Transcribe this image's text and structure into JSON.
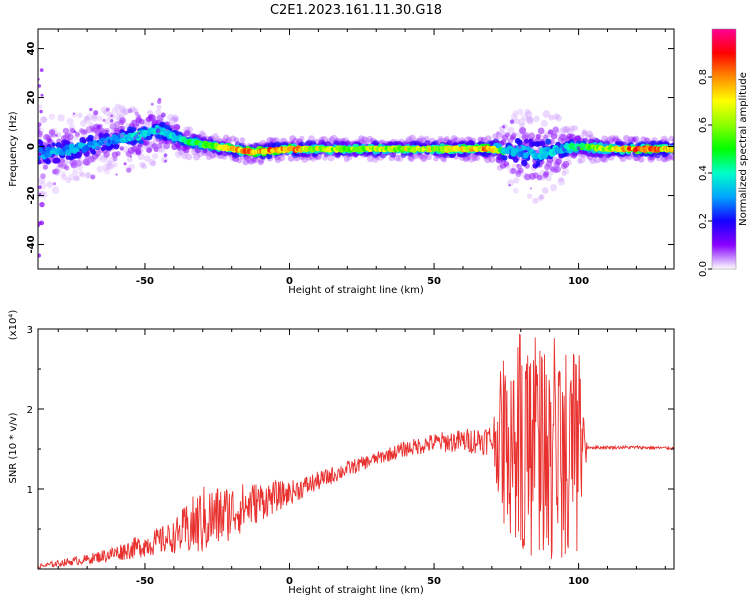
{
  "page": {
    "title": "C2E1.2023.161.11.30.G18"
  },
  "chart_data": [
    {
      "type": "heatmap",
      "xlabel": "Height of straight line (km)",
      "ylabel": "Frequency (Hz)",
      "xlim": [
        -87,
        133
      ],
      "ylim": [
        -50,
        48
      ],
      "xticks": [
        -50,
        0,
        50,
        100
      ],
      "yticks": [
        -40,
        -20,
        0,
        20,
        40
      ],
      "x_tick_labels": [
        "-50",
        "0",
        "50",
        "100"
      ],
      "y_tick_labels": [
        "-40",
        "-20",
        "0",
        "20",
        "40"
      ],
      "colorbar": {
        "label": "Normalized spectral amplitude",
        "range": [
          0,
          1
        ],
        "ticks": [
          0.0,
          0.2,
          0.4,
          0.6,
          0.8
        ],
        "tick_labels": [
          "0.0",
          "0.2",
          "0.4",
          "0.6",
          "0.8"
        ]
      },
      "ridge": {
        "x": [
          -87,
          -80,
          -70,
          -60,
          -50,
          -45,
          -40,
          -35,
          -30,
          -25,
          -20,
          -15,
          -10,
          0,
          10,
          20,
          30,
          40,
          50,
          60,
          70,
          75,
          80,
          85,
          90,
          95,
          100,
          110,
          120,
          133
        ],
        "freq": [
          -3,
          -2,
          0,
          3,
          5,
          7,
          4,
          2,
          1,
          0,
          -1,
          -2,
          -2,
          -1,
          -1,
          -1,
          -1,
          -1,
          -1,
          -1,
          -1,
          -2,
          -2,
          -3,
          -2,
          -1,
          0,
          -1,
          -1,
          -1
        ],
        "amplitude": [
          0.35,
          0.35,
          0.35,
          0.35,
          0.45,
          0.4,
          0.45,
          0.5,
          0.6,
          0.7,
          0.85,
          0.95,
          0.95,
          0.9,
          0.75,
          0.7,
          0.75,
          0.75,
          0.75,
          0.8,
          0.9,
          0.4,
          0.35,
          0.4,
          0.4,
          0.35,
          0.55,
          0.75,
          0.95,
          0.8
        ],
        "spread": [
          9,
          7,
          6,
          6,
          6,
          6,
          4,
          3,
          3,
          2,
          2,
          2,
          2,
          2,
          2,
          2,
          2,
          2,
          2,
          2,
          2,
          6,
          9,
          9,
          8,
          6,
          3,
          2,
          2,
          2
        ]
      }
    },
    {
      "type": "line",
      "xlabel": "Height of straight line (km)",
      "ylabel": "SNR (10 * v/v)",
      "y_multiplier_label": "(x10⁴)",
      "xlim": [
        -87,
        133
      ],
      "ylim": [
        0,
        3
      ],
      "xticks": [
        -50,
        0,
        50,
        100
      ],
      "yticks": [
        1,
        2,
        3
      ],
      "x_tick_labels": [
        "-50",
        "0",
        "50",
        "100"
      ],
      "y_tick_labels": [
        "1",
        "2",
        "3"
      ],
      "color": "#e8312f",
      "trend": {
        "x": [
          -87,
          -80,
          -70,
          -60,
          -50,
          -40,
          -35,
          -30,
          -25,
          -20,
          -15,
          -10,
          -5,
          0,
          10,
          20,
          30,
          40,
          50,
          60,
          70,
          75,
          80,
          90,
          100,
          103,
          110,
          120,
          133
        ],
        "snr": [
          0.03,
          0.07,
          0.12,
          0.2,
          0.3,
          0.4,
          0.5,
          0.6,
          0.65,
          0.72,
          0.78,
          0.85,
          0.9,
          0.95,
          1.1,
          1.25,
          1.38,
          1.5,
          1.58,
          1.6,
          1.62,
          1.62,
          1.58,
          1.55,
          1.5,
          1.52,
          1.52,
          1.52,
          1.51
        ],
        "noise_amplitude": [
          0.03,
          0.04,
          0.06,
          0.1,
          0.15,
          0.2,
          0.35,
          0.45,
          0.4,
          0.35,
          0.3,
          0.25,
          0.2,
          0.15,
          0.12,
          0.1,
          0.08,
          0.1,
          0.12,
          0.15,
          0.2,
          1.3,
          1.4,
          1.45,
          1.35,
          0.02,
          0.02,
          0.02,
          0.02
        ]
      }
    }
  ]
}
